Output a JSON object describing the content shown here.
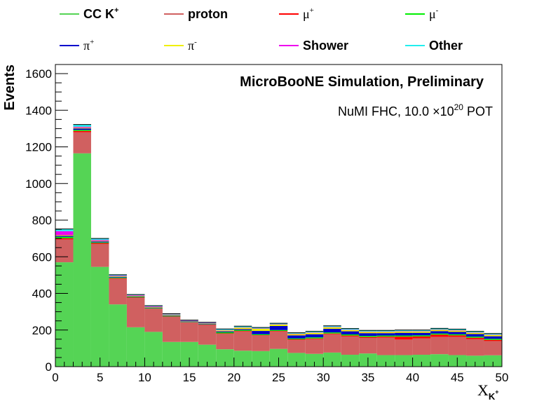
{
  "chart_data": {
    "type": "bar",
    "stacked": true,
    "title": "MicroBooNE Simulation, Preliminary",
    "subtitle": {
      "prefix": "NuMI FHC, 10.0  ",
      "times": "×",
      "base": "10",
      "exp": "20",
      "suffix": " POT"
    },
    "ylabel": "Events",
    "xlabel": {
      "base": "X",
      "sub": "K",
      "sup": "+"
    },
    "xlim": [
      0,
      50
    ],
    "ylim": [
      0,
      1650
    ],
    "x_ticks": [
      "0",
      "5",
      "10",
      "15",
      "20",
      "25",
      "30",
      "35",
      "40",
      "45",
      "50"
    ],
    "y_ticks": [
      "0",
      "200",
      "400",
      "600",
      "800",
      "1000",
      "1200",
      "1400",
      "1600"
    ],
    "bin_edges": [
      0,
      2,
      4,
      6,
      8,
      10,
      12,
      14,
      16,
      18,
      20,
      22,
      24,
      26,
      28,
      30,
      32,
      34,
      36,
      38,
      40,
      42,
      44,
      46,
      48,
      50
    ],
    "legend": {
      "placement": "top",
      "entries": [
        {
          "base": "CC K",
          "sup": "+",
          "key": "cck",
          "bold": true
        },
        {
          "base": "proton",
          "sup": "",
          "key": "proton",
          "bold": true
        },
        {
          "base": "μ",
          "sup": "+",
          "key": "muplus",
          "greek": true
        },
        {
          "base": "μ",
          "sup": "-",
          "key": "muminus",
          "greek": true
        },
        {
          "base": "π",
          "sup": "+",
          "key": "piplus",
          "greek": true
        },
        {
          "base": "π",
          "sup": "-",
          "key": "piminus",
          "greek": true
        },
        {
          "base": "Shower",
          "sup": "",
          "key": "shower",
          "bold": true
        },
        {
          "base": "Other",
          "sup": "",
          "key": "other",
          "bold": true
        }
      ]
    },
    "series": [
      {
        "name": "CC K+",
        "key": "cck",
        "color": "#55d455",
        "values": [
          570,
          1165,
          545,
          340,
          215,
          190,
          135,
          135,
          120,
          95,
          87,
          85,
          97,
          75,
          70,
          77,
          65,
          72,
          63,
          63,
          65,
          68,
          63,
          60,
          62
        ]
      },
      {
        "name": "proton",
        "key": "proton",
        "color": "#d06060",
        "values": [
          125,
          115,
          125,
          140,
          160,
          125,
          137,
          105,
          108,
          85,
          105,
          85,
          95,
          70,
          80,
          100,
          100,
          85,
          95,
          85,
          90,
          95,
          100,
          90,
          78
        ]
      },
      {
        "name": "μ+",
        "key": "muplus",
        "color": "#ff0000",
        "values": [
          6,
          7,
          5,
          3,
          3,
          2,
          2,
          2,
          2,
          2,
          3,
          2,
          3,
          4,
          4,
          4,
          5,
          5,
          6,
          16,
          10,
          12,
          8,
          8,
          6
        ]
      },
      {
        "name": "μ-",
        "key": "muminus",
        "color": "#00ee00",
        "values": [
          8,
          6,
          4,
          4,
          3,
          3,
          3,
          2,
          2,
          6,
          5,
          5,
          5,
          5,
          6,
          6,
          6,
          6,
          6,
          6,
          6,
          6,
          6,
          6,
          6
        ]
      },
      {
        "name": "π+",
        "key": "piplus",
        "color": "#0000cc",
        "values": [
          5,
          8,
          5,
          4,
          3,
          3,
          3,
          3,
          3,
          5,
          5,
          18,
          22,
          17,
          17,
          20,
          17,
          15,
          13,
          15,
          14,
          13,
          13,
          14,
          14
        ]
      },
      {
        "name": "π-",
        "key": "piminus",
        "color": "#f0f000",
        "values": [
          4,
          4,
          3,
          3,
          3,
          3,
          3,
          2,
          2,
          5,
          8,
          12,
          8,
          7,
          8,
          8,
          7,
          7,
          7,
          7,
          7,
          7,
          7,
          7,
          7
        ]
      },
      {
        "name": "Shower",
        "key": "shower",
        "color": "#ee00ee",
        "values": [
          22,
          5,
          5,
          3,
          3,
          3,
          2,
          2,
          2,
          2,
          2,
          2,
          2,
          2,
          2,
          2,
          2,
          2,
          2,
          2,
          2,
          2,
          2,
          2,
          2
        ]
      },
      {
        "name": "Other",
        "key": "other",
        "color": "#22eeee",
        "values": [
          12,
          12,
          8,
          5,
          4,
          4,
          4,
          3,
          3,
          6,
          6,
          5,
          5,
          5,
          6,
          6,
          6,
          6,
          6,
          6,
          6,
          6,
          6,
          6,
          6
        ]
      }
    ]
  }
}
